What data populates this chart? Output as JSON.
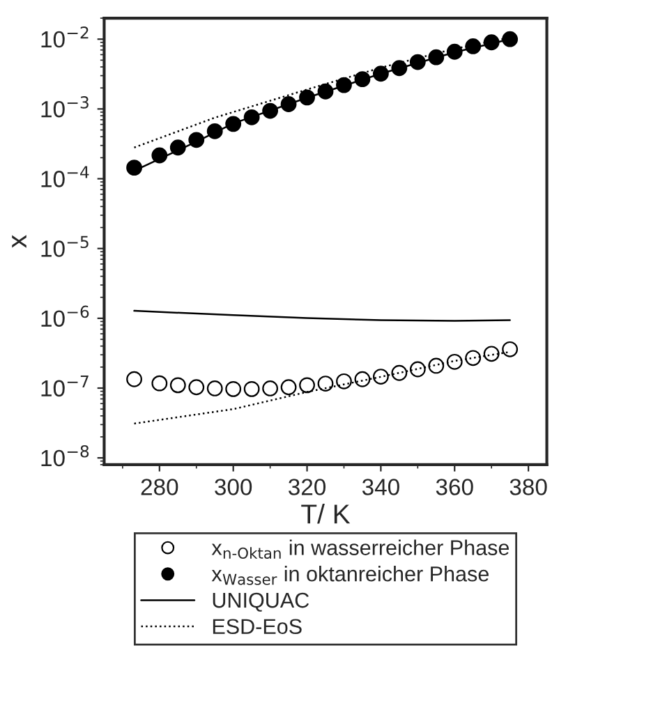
{
  "chart_data": {
    "type": "scatter",
    "xlabel": "T/ K",
    "ylabel": "x",
    "log": "y",
    "xlim": [
      265,
      385
    ],
    "xticks": [
      280,
      300,
      320,
      340,
      360,
      380
    ],
    "ylim": [
      8e-09,
      0.02
    ],
    "yticks": [
      {
        "value": 1e-08,
        "label": "10$^{−8}$"
      },
      {
        "value": 1e-07,
        "label": "10$^{−7}$"
      },
      {
        "value": 1e-06,
        "label": "10$^{−6}$"
      },
      {
        "value": 1e-05,
        "label": "10$^{−5}$"
      },
      {
        "value": 0.0001,
        "label": "10$^{−4}$"
      },
      {
        "value": 0.001,
        "label": "10$^{−3}$"
      },
      {
        "value": 0.01,
        "label": "10$^{−2}$"
      }
    ],
    "grid": false,
    "legend": "bottom",
    "marker": "circle",
    "series": [
      {
        "name": "x$_{n-Oktan}$ in wasserreicher Phase",
        "color": "#ffffff",
        "x": [
          273.15,
          280,
          285,
          290,
          295,
          300,
          305,
          310,
          315,
          320,
          325,
          330,
          335,
          340,
          345,
          350,
          355,
          360,
          365,
          370,
          375
        ],
        "values": [
          1.34e-07,
          1.17e-07,
          1.1e-07,
          1.03e-07,
          9.9e-08,
          9.7e-08,
          9.7e-08,
          9.9e-08,
          1.03e-07,
          1.1e-07,
          1.16e-07,
          1.25e-07,
          1.34e-07,
          1.46e-07,
          1.65e-07,
          1.86e-07,
          2.09e-07,
          2.38e-07,
          2.7e-07,
          3.1e-07,
          3.6e-07
        ]
      },
      {
        "name": "x$_{Wasser}$ in oktanreicher Phase",
        "color": "#000000",
        "x": [
          273.15,
          280,
          285,
          290,
          295,
          300,
          305,
          310,
          315,
          320,
          325,
          330,
          335,
          340,
          345,
          350,
          355,
          360,
          365,
          370,
          375
        ],
        "values": [
          0.000144,
          0.000216,
          0.00028,
          0.00036,
          0.00048,
          0.00061,
          0.00076,
          0.00094,
          0.00117,
          0.00146,
          0.00178,
          0.0022,
          0.00267,
          0.0032,
          0.00385,
          0.0047,
          0.0055,
          0.0066,
          0.0079,
          0.009,
          0.01
        ]
      },
      {
        "name": "UNIQUAC",
        "type": "line",
        "line_style": "solid",
        "marker": "none",
        "color": "#000000",
        "x": [
          273.15,
          290,
          300,
          320,
          340,
          360,
          375
        ],
        "values": [
          0.00013,
          0.00034,
          0.00062,
          0.00145,
          0.0032,
          0.0065,
          0.01
        ]
      },
      {
        "name": "ESD-EoS",
        "type": "line",
        "line_style": "dotted",
        "marker": "none",
        "color": "#000000",
        "x": [
          273.15,
          295,
          320,
          340,
          360,
          375
        ],
        "values": [
          0.00028,
          0.00075,
          0.0019,
          0.0039,
          0.0073,
          0.0105
        ]
      },
      {
        "type": "line",
        "line_style": "solid",
        "marker": "none",
        "color": "#000000",
        "x": [
          273.15,
          300,
          320,
          340,
          360,
          375
        ],
        "values": [
          1.28e-06,
          1.11e-06,
          1.01e-06,
          9.4e-07,
          9.2e-07,
          9.4e-07
        ]
      },
      {
        "type": "line",
        "line_style": "dotted",
        "marker": "none",
        "color": "#000000",
        "x": [
          273.15,
          300,
          320,
          340,
          360,
          375
        ],
        "values": [
          3.1e-08,
          5e-08,
          8.8e-08,
          1.45e-07,
          2.45e-07,
          3.3e-07
        ]
      }
    ]
  }
}
